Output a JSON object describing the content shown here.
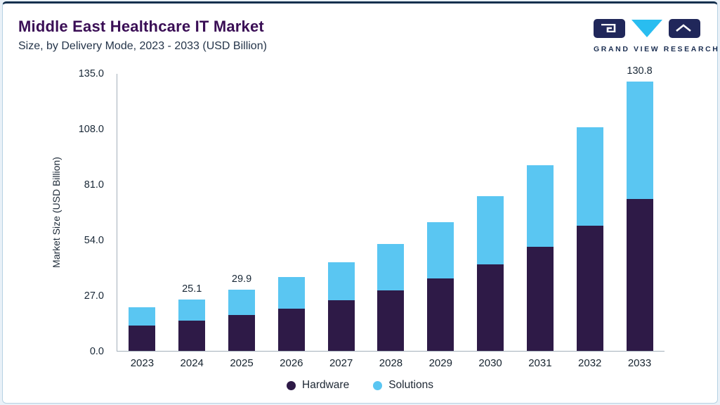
{
  "header": {
    "title": "Middle East Healthcare IT Market",
    "subtitle": "Size, by Delivery Mode, 2023 - 2033 (USD Billion)"
  },
  "logo": {
    "text": "GRAND VIEW RESEARCH",
    "navy": "#20275a",
    "cyan": "#29bdf0"
  },
  "chart_data": {
    "type": "bar",
    "stacked": true,
    "title": "Middle East Healthcare IT Market Size, by Delivery Mode, 2023 - 2033 (USD Billion)",
    "ylabel": "Market Size (USD Billion)",
    "xlabel": "",
    "ylim": [
      0,
      135
    ],
    "yticks": [
      0,
      27,
      54,
      81,
      108,
      135
    ],
    "ytick_labels": [
      "0.0",
      "27.0",
      "54.0",
      "81.0",
      "108.0",
      "135.0"
    ],
    "grid": false,
    "legend_position": "bottom",
    "categories": [
      "2023",
      "2024",
      "2025",
      "2026",
      "2027",
      "2028",
      "2029",
      "2030",
      "2031",
      "2032",
      "2033"
    ],
    "series": [
      {
        "name": "Hardware",
        "color": "#2e1a47",
        "values": [
          12.2,
          14.6,
          17.3,
          20.6,
          24.6,
          29.4,
          35.2,
          42.2,
          50.6,
          60.7,
          73.9
        ]
      },
      {
        "name": "Solutions",
        "color": "#5ac6f2",
        "values": [
          8.9,
          10.5,
          12.6,
          15.3,
          18.6,
          22.5,
          27.2,
          32.9,
          39.7,
          47.9,
          56.9
        ]
      }
    ],
    "totals": [
      21.1,
      25.1,
      29.9,
      35.9,
      43.2,
      51.9,
      62.4,
      75.1,
      90.3,
      108.6,
      130.8
    ],
    "bar_labels": {
      "2024": "25.1",
      "2025": "29.9",
      "2033": "130.8"
    }
  },
  "legend": [
    {
      "label": "Hardware",
      "color": "#2e1a47"
    },
    {
      "label": "Solutions",
      "color": "#5ac6f2"
    }
  ]
}
